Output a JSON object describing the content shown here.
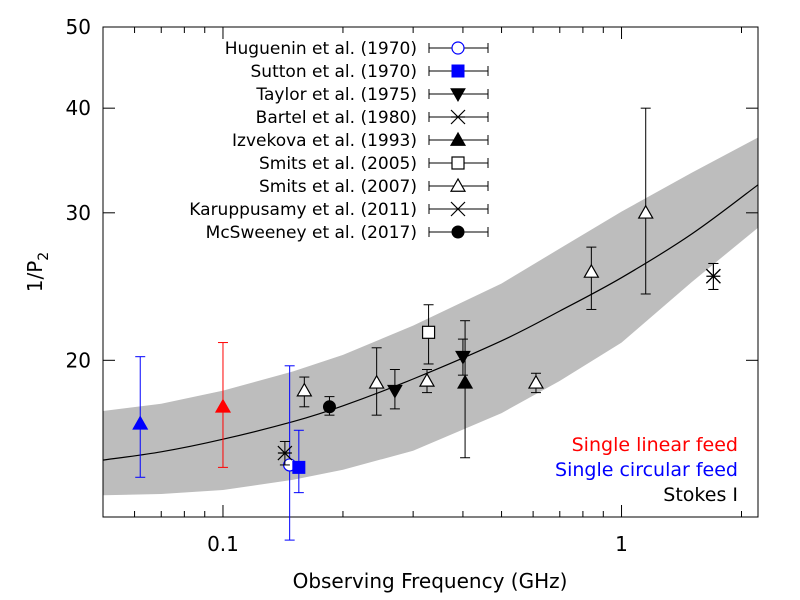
{
  "chart_data": {
    "type": "scatter",
    "title": "",
    "xlabel": "Observing Frequency (GHz)",
    "ylabel_main": "1/P",
    "ylabel_sub": "2",
    "x_scale": "log",
    "y_scale": "log",
    "xlim": [
      0.05,
      2.2
    ],
    "ylim": [
      13,
      50
    ],
    "x_ticks": [
      {
        "value": 0.1,
        "label": "0.1"
      },
      {
        "value": 1,
        "label": "1"
      }
    ],
    "y_ticks": [
      {
        "value": 20,
        "label": "20"
      },
      {
        "value": 30,
        "label": "30"
      },
      {
        "value": 40,
        "label": "40"
      },
      {
        "value": 50,
        "label": "50"
      }
    ],
    "model": {
      "points": [
        [
          0.05,
          15.2
        ],
        [
          0.07,
          15.55
        ],
        [
          0.1,
          16.1
        ],
        [
          0.15,
          16.9
        ],
        [
          0.2,
          17.65
        ],
        [
          0.3,
          19.0
        ],
        [
          0.5,
          21.1
        ],
        [
          0.7,
          22.9
        ],
        [
          1.0,
          25.1
        ],
        [
          1.5,
          28.3
        ],
        [
          2.2,
          32.4
        ]
      ],
      "band_upper": [
        [
          0.05,
          17.4
        ],
        [
          0.07,
          17.75
        ],
        [
          0.1,
          18.4
        ],
        [
          0.15,
          19.4
        ],
        [
          0.2,
          20.3
        ],
        [
          0.3,
          22.0
        ],
        [
          0.5,
          24.7
        ],
        [
          0.7,
          27.2
        ],
        [
          1.0,
          30.1
        ],
        [
          1.5,
          33.5
        ],
        [
          2.2,
          36.9
        ]
      ],
      "band_lower": [
        [
          0.05,
          13.8
        ],
        [
          0.07,
          13.85
        ],
        [
          0.1,
          14.0
        ],
        [
          0.15,
          14.4
        ],
        [
          0.2,
          14.8
        ],
        [
          0.3,
          15.6
        ],
        [
          0.5,
          17.3
        ],
        [
          0.7,
          18.9
        ],
        [
          1.0,
          21.0
        ],
        [
          1.5,
          24.8
        ],
        [
          2.2,
          28.8
        ]
      ],
      "color": "#000000",
      "band_color": "#bdbdbd"
    },
    "series": [
      {
        "name": "Huguenin et al. (1970)",
        "marker": "circle-open",
        "color": "#0000ff",
        "points": [
          {
            "x": 0.147,
            "y": 15.0,
            "lo": 12.2,
            "hi": 19.7
          }
        ]
      },
      {
        "name": "Sutton et al. (1970)",
        "marker": "square-filled",
        "color": "#0000ff",
        "points": [
          {
            "x": 0.155,
            "y": 14.9,
            "lo": 13.9,
            "hi": 16.5
          }
        ]
      },
      {
        "name": "Taylor et al. (1975)",
        "marker": "triangle-down-filled",
        "color": "#000000",
        "points": [
          {
            "x": 0.27,
            "y": 18.4,
            "lo": 17.5,
            "hi": 19.5
          },
          {
            "x": 0.4,
            "y": 20.2,
            "lo": 19.2,
            "hi": 21.2
          }
        ]
      },
      {
        "name": "Bartel et al. (1980)",
        "marker": "star",
        "color": "#000000",
        "points": [
          {
            "x": 0.143,
            "y": 15.5,
            "lo": 15.0,
            "hi": 16.0
          },
          {
            "x": 1.7,
            "y": 25.2,
            "lo": 24.3,
            "hi": 26.1
          }
        ]
      },
      {
        "name": "Izvekova et al. (1993)",
        "marker": "triangle-up-filled",
        "color": "#000000",
        "points": [
          {
            "x": 0.405,
            "y": 18.8,
            "lo": 15.3,
            "hi": 22.3
          }
        ]
      },
      {
        "name": "Smits et al. (2005)",
        "marker": "square-open",
        "color": "#000000",
        "points": [
          {
            "x": 0.328,
            "y": 21.6,
            "lo": 19.8,
            "hi": 23.3
          }
        ]
      },
      {
        "name": "Smits et al. (2007)",
        "marker": "triangle-up-open",
        "color": "#000000",
        "points": [
          {
            "x": 0.16,
            "y": 18.4,
            "lo": 17.6,
            "hi": 19.1
          },
          {
            "x": 0.243,
            "y": 18.8,
            "lo": 17.2,
            "hi": 20.7
          },
          {
            "x": 0.325,
            "y": 18.9,
            "lo": 18.3,
            "hi": 19.5
          },
          {
            "x": 0.61,
            "y": 18.8,
            "lo": 18.3,
            "hi": 19.3
          },
          {
            "x": 0.84,
            "y": 25.5,
            "lo": 23.0,
            "hi": 27.3
          },
          {
            "x": 1.15,
            "y": 30.0,
            "lo": 24.0,
            "hi": 40.0
          }
        ]
      },
      {
        "name": "Karuppusamy et al. (2011)",
        "marker": "cross",
        "color": "#000000",
        "points": [
          {
            "x": 1.7,
            "y": 25.2,
            "lo": 24.3,
            "hi": 26.1
          }
        ]
      },
      {
        "name": "McSweeney et al. (2017)",
        "marker": "circle-filled",
        "color": "#000000",
        "points": [
          {
            "x": 0.185,
            "y": 17.6,
            "lo": 17.2,
            "hi": 18.1
          }
        ]
      }
    ],
    "extra_series": [
      {
        "name": "Single linear feed point",
        "marker": "triangle-up-filled",
        "color": "#ff0000",
        "points": [
          {
            "x": 0.1,
            "y": 17.6,
            "lo": 14.9,
            "hi": 21.0
          }
        ]
      },
      {
        "name": "Single circular feed point",
        "marker": "triangle-up-filled",
        "color": "#0000ff",
        "points": [
          {
            "x": 0.062,
            "y": 16.8,
            "lo": 14.5,
            "hi": 20.2
          }
        ]
      }
    ],
    "annotations": [
      {
        "text": "Single linear feed",
        "color": "#ff0000"
      },
      {
        "text": "Single circular feed",
        "color": "#0000ff"
      },
      {
        "text": "Stokes I",
        "color": "#000000"
      }
    ],
    "legend_position": "top-left"
  }
}
